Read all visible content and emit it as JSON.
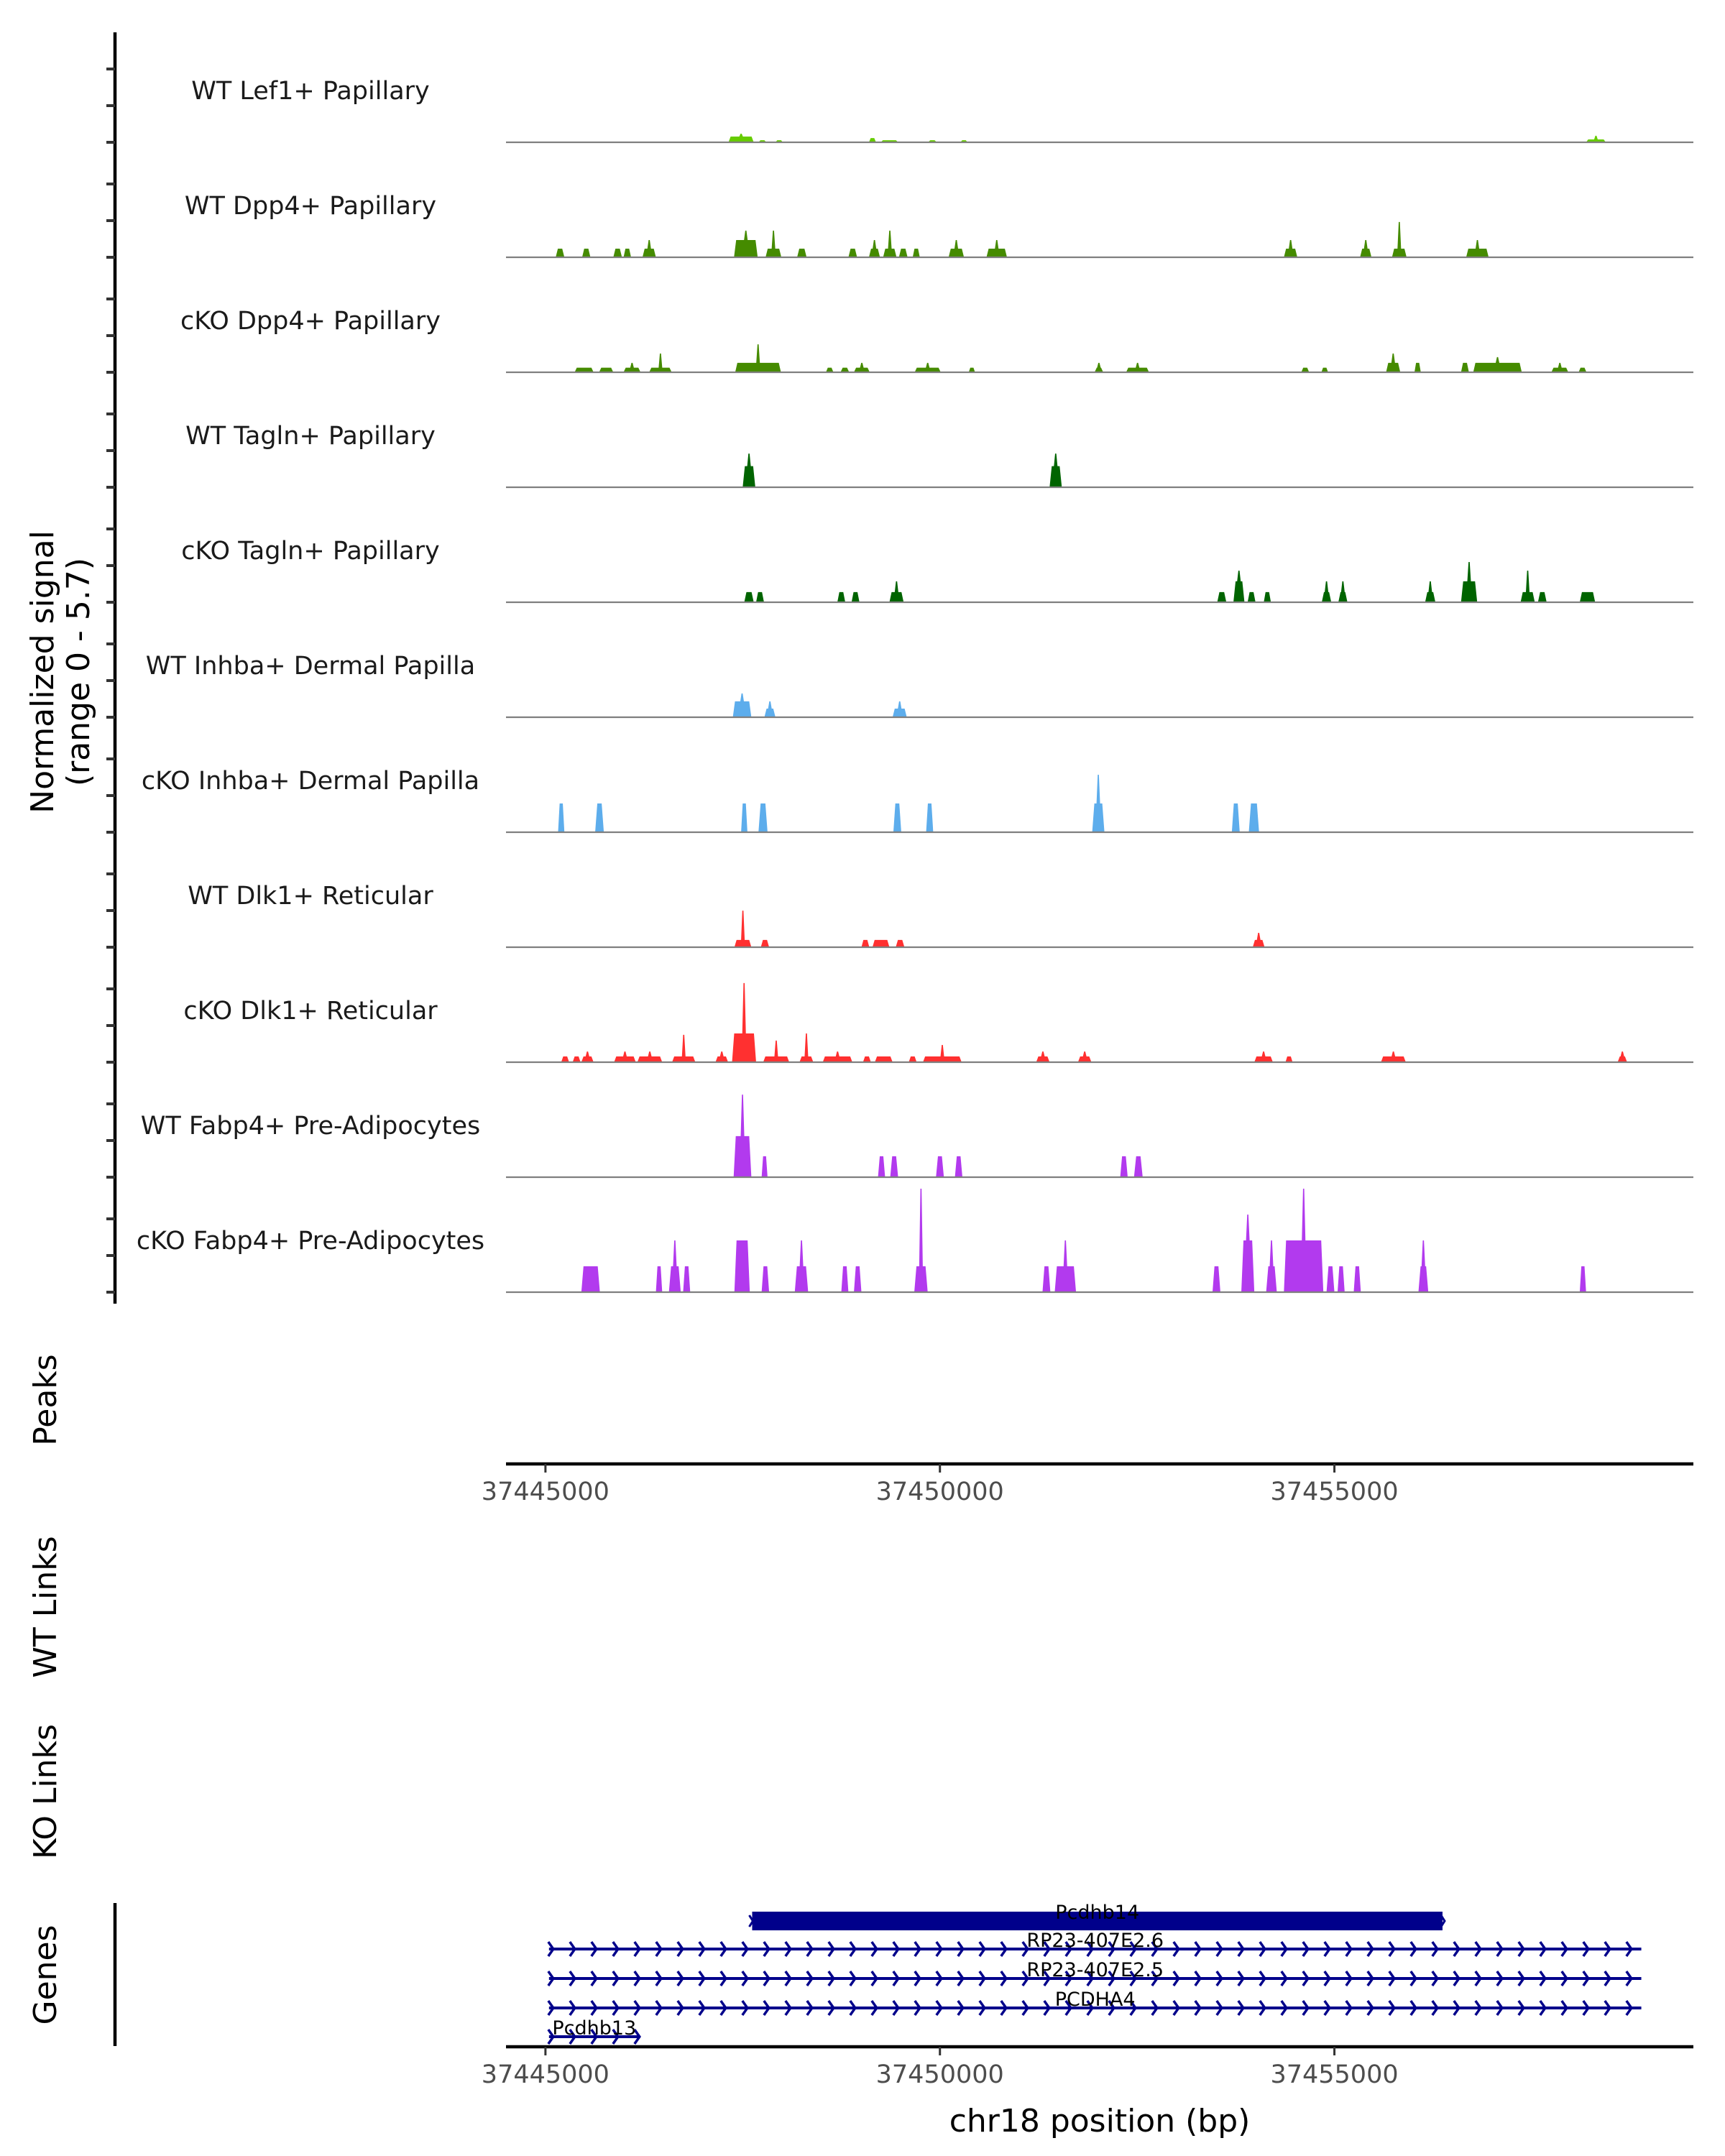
{
  "chart_data": {
    "type": "area",
    "title": "",
    "region": {
      "chrom": "chr18",
      "xlim": [
        37444500,
        37459550
      ]
    },
    "signal_axis": {
      "label_line1": "Normalized signal",
      "label_line2": "(range 0 - 5.7)",
      "ylim": [
        0,
        5.7
      ]
    },
    "xticks": [
      37445000,
      37450000,
      37455000
    ],
    "xtick_labels": [
      "37445000",
      "37450000",
      "37455000"
    ],
    "xlabel": "chr18 position (bp)",
    "panel_labels": {
      "peaks": "Peaks",
      "wt_links": "WT Links",
      "ko_links": "KO Links",
      "genes": "Genes"
    },
    "tracks": [
      {
        "label": "WT Lef1+ Papillary",
        "color": "#66CC00",
        "peaks": [
          [
            37447320,
            37447640,
            0.3,
            0.45
          ],
          [
            37447700,
            37447800,
            0.11
          ],
          [
            37447915,
            37448010,
            0.11
          ],
          [
            37449100,
            37449190,
            0.22
          ],
          [
            37449250,
            37449470,
            0.11
          ],
          [
            37449850,
            37449960,
            0.11
          ],
          [
            37450260,
            37450350,
            0.11
          ],
          [
            37458190,
            37458440,
            0.15,
            0.34
          ]
        ]
      },
      {
        "label": "WT Dpp4+ Papillary",
        "color": "#458B00",
        "peaks": [
          [
            37445130,
            37445240,
            0.45
          ],
          [
            37445465,
            37445570,
            0.45
          ],
          [
            37445860,
            37445970,
            0.45
          ],
          [
            37445990,
            37446085,
            0.45
          ],
          [
            37446230,
            37446400,
            0.45,
            0.9
          ],
          [
            37447390,
            37447690,
            0.9,
            1.39
          ],
          [
            37447790,
            37447990,
            0.45,
            1.39
          ],
          [
            37448190,
            37448310,
            0.45
          ],
          [
            37448840,
            37448950,
            0.45
          ],
          [
            37449100,
            37449240,
            0.45,
            0.9
          ],
          [
            37449280,
            37449450,
            0.45,
            1.39
          ],
          [
            37449480,
            37449590,
            0.45
          ],
          [
            37449655,
            37449745,
            0.45
          ],
          [
            37450110,
            37450305,
            0.45,
            0.9
          ],
          [
            37450590,
            37450850,
            0.45,
            0.9
          ],
          [
            37454360,
            37454530,
            0.45,
            0.9
          ],
          [
            37455325,
            37455470,
            0.45,
            0.9
          ],
          [
            37455730,
            37455915,
            0.45,
            1.84
          ],
          [
            37456670,
            37456955,
            0.45,
            0.9
          ]
        ]
      },
      {
        "label": "cKO Dpp4+ Papillary",
        "color": "#458B00",
        "peaks": [
          [
            37445370,
            37445610,
            0.24
          ],
          [
            37445680,
            37445860,
            0.24
          ],
          [
            37445990,
            37446205,
            0.24,
            0.49
          ],
          [
            37446315,
            37446600,
            0.24,
            0.98
          ],
          [
            37447405,
            37447985,
            0.49,
            1.46
          ],
          [
            37448555,
            37448650,
            0.24
          ],
          [
            37448740,
            37448850,
            0.24
          ],
          [
            37448910,
            37449110,
            0.24,
            0.49
          ],
          [
            37449680,
            37450010,
            0.24,
            0.49
          ],
          [
            37450365,
            37450445,
            0.24
          ],
          [
            37451960,
            37452070,
            0.24,
            0.49
          ],
          [
            37452360,
            37452650,
            0.24,
            0.49
          ],
          [
            37454580,
            37454680,
            0.24
          ],
          [
            37454835,
            37454920,
            0.24
          ],
          [
            37455655,
            37455835,
            0.49,
            0.98
          ],
          [
            37456015,
            37456095,
            0.49
          ],
          [
            37456605,
            37456705,
            0.49
          ],
          [
            37456760,
            37457375,
            0.49,
            0.79
          ],
          [
            37457750,
            37457965,
            0.24,
            0.49
          ],
          [
            37458095,
            37458195,
            0.24
          ]
        ]
      },
      {
        "label": "WT Tagln+ Papillary",
        "color": "#006400",
        "peaks": [
          [
            37447500,
            37447660,
            1.1,
            1.76
          ],
          [
            37451390,
            37451545,
            1.1,
            1.76
          ]
        ]
      },
      {
        "label": "cKO Tagln+ Papillary",
        "color": "#006400",
        "peaks": [
          [
            37447520,
            37447640,
            0.53
          ],
          [
            37447670,
            37447770,
            0.53
          ],
          [
            37448700,
            37448800,
            0.53
          ],
          [
            37448880,
            37448980,
            0.53
          ],
          [
            37449360,
            37449540,
            0.53,
            1.09
          ],
          [
            37453515,
            37453630,
            0.53
          ],
          [
            37453720,
            37453860,
            1.09,
            1.65
          ],
          [
            37453900,
            37454000,
            0.53
          ],
          [
            37454105,
            37454195,
            0.53
          ],
          [
            37454840,
            37454960,
            0.53,
            1.09
          ],
          [
            37455050,
            37455165,
            0.53,
            1.09
          ],
          [
            37456150,
            37456280,
            0.53,
            1.09
          ],
          [
            37456605,
            37456810,
            1.09,
            2.1
          ],
          [
            37457360,
            37457540,
            0.53,
            1.65
          ],
          [
            37457580,
            37457690,
            0.53
          ],
          [
            37458110,
            37458305,
            0.53
          ]
        ]
      },
      {
        "label": "WT Inhba+ Dermal Papilla",
        "color": "#5DADEC",
        "peaks": [
          [
            37447375,
            37447610,
            0.83,
            1.24
          ],
          [
            37447775,
            37447915,
            0.45,
            0.83
          ],
          [
            37449400,
            37449580,
            0.45,
            0.83
          ]
        ]
      },
      {
        "label": "cKO Inhba+ Dermal Papilla",
        "color": "#5DADEC",
        "peaks": [
          [
            37445160,
            37445240,
            1.5
          ],
          [
            37445630,
            37445740,
            1.5
          ],
          [
            37447480,
            37447560,
            1.5
          ],
          [
            37447700,
            37447815,
            1.5
          ],
          [
            37449410,
            37449510,
            1.5
          ],
          [
            37449825,
            37449915,
            1.5
          ],
          [
            37451930,
            37452085,
            1.5,
            3.0
          ],
          [
            37453700,
            37453800,
            1.5
          ],
          [
            37453915,
            37454045,
            1.5
          ]
        ]
      },
      {
        "label": "WT Dlk1+ Reticular",
        "color": "#FF3030",
        "peaks": [
          [
            37447395,
            37447610,
            0.38,
            1.91
          ],
          [
            37447730,
            37447835,
            0.38
          ],
          [
            37449005,
            37449105,
            0.38
          ],
          [
            37449145,
            37449360,
            0.38
          ],
          [
            37449440,
            37449550,
            0.38
          ],
          [
            37453965,
            37454115,
            0.38,
            0.75
          ]
        ]
      },
      {
        "label": "cKO Dlk1+ Reticular",
        "color": "#FF3030",
        "peaks": [
          [
            37445200,
            37445300,
            0.3
          ],
          [
            37445345,
            37445445,
            0.3
          ],
          [
            37445455,
            37445610,
            0.3,
            0.56
          ],
          [
            37445870,
            37446145,
            0.3,
            0.56
          ],
          [
            37446165,
            37446480,
            0.3,
            0.56
          ],
          [
            37446605,
            37446900,
            0.3,
            1.43
          ],
          [
            37447155,
            37447315,
            0.3,
            0.56
          ],
          [
            37447365,
            37447670,
            1.5,
            4.13
          ],
          [
            37447760,
            37448090,
            0.3,
            1.13
          ],
          [
            37448220,
            37448395,
            0.3,
            1.5
          ],
          [
            37448515,
            37448890,
            0.3,
            0.56
          ],
          [
            37449025,
            37449125,
            0.3
          ],
          [
            37449175,
            37449400,
            0.3
          ],
          [
            37449605,
            37449705,
            0.3
          ],
          [
            37449785,
            37450275,
            0.3,
            0.9
          ],
          [
            37451220,
            37451390,
            0.3,
            0.56
          ],
          [
            37451750,
            37451920,
            0.3,
            0.56
          ],
          [
            37453985,
            37454220,
            0.3,
            0.56
          ],
          [
            37454380,
            37454470,
            0.3
          ],
          [
            37455590,
            37455905,
            0.3,
            0.56
          ],
          [
            37458590,
            37458710,
            0.3,
            0.56
          ]
        ]
      },
      {
        "label": "WT Fabp4+ Pre-Adipocytes",
        "color": "#B23AEE",
        "peaks": [
          [
            37447385,
            37447610,
            2.14,
            4.31
          ],
          [
            37447740,
            37447815,
            1.09
          ],
          [
            37449215,
            37449305,
            1.09
          ],
          [
            37449370,
            37449470,
            1.09
          ],
          [
            37449950,
            37450050,
            1.09
          ],
          [
            37450190,
            37450285,
            1.09
          ],
          [
            37452285,
            37452380,
            1.09
          ],
          [
            37452460,
            37452570,
            1.09
          ]
        ]
      },
      {
        "label": "cKO Fabp4+ Pre-Adipocytes",
        "color": "#B23AEE",
        "peaks": [
          [
            37445455,
            37445690,
            1.35
          ],
          [
            37446400,
            37446480,
            1.35
          ],
          [
            37446565,
            37446715,
            1.35,
            2.7
          ],
          [
            37446745,
            37446835,
            1.35
          ],
          [
            37447395,
            37447590,
            2.7
          ],
          [
            37447740,
            37447835,
            1.35
          ],
          [
            37448160,
            37448330,
            1.35,
            2.7
          ],
          [
            37448750,
            37448840,
            1.35
          ],
          [
            37448910,
            37449005,
            1.35
          ],
          [
            37449675,
            37449845,
            1.35,
            5.4
          ],
          [
            37451300,
            37451400,
            1.35
          ],
          [
            37451455,
            37451725,
            1.35,
            2.7
          ],
          [
            37453455,
            37453555,
            1.35
          ],
          [
            37453820,
            37453985,
            2.7,
            4.05
          ],
          [
            37454135,
            37454270,
            1.35,
            2.7
          ],
          [
            37454360,
            37454860,
            2.7,
            5.4
          ],
          [
            37454900,
            37455000,
            1.35
          ],
          [
            37455040,
            37455130,
            1.35
          ],
          [
            37455245,
            37455335,
            1.35
          ],
          [
            37456065,
            37456190,
            1.35,
            2.7
          ],
          [
            37458110,
            37458190,
            1.35
          ]
        ]
      }
    ],
    "genes": [
      {
        "name": "Pcdhb14",
        "start": 37447620,
        "end": 37456370,
        "strand": "+",
        "style": "exon"
      },
      {
        "name": "RP23-407E2.6",
        "start": 37445045,
        "end": 37458890,
        "strand": "+",
        "style": "intron"
      },
      {
        "name": "RP23-407E2.5",
        "start": 37445045,
        "end": 37458890,
        "strand": "+",
        "style": "intron"
      },
      {
        "name": "PCDHA4",
        "start": 37445045,
        "end": 37458890,
        "strand": "+",
        "style": "intron"
      },
      {
        "name": "Pcdhb13",
        "start": 37445045,
        "end": 37446190,
        "strand": "+",
        "style": "intron"
      }
    ],
    "gene_color": "#00008B"
  }
}
